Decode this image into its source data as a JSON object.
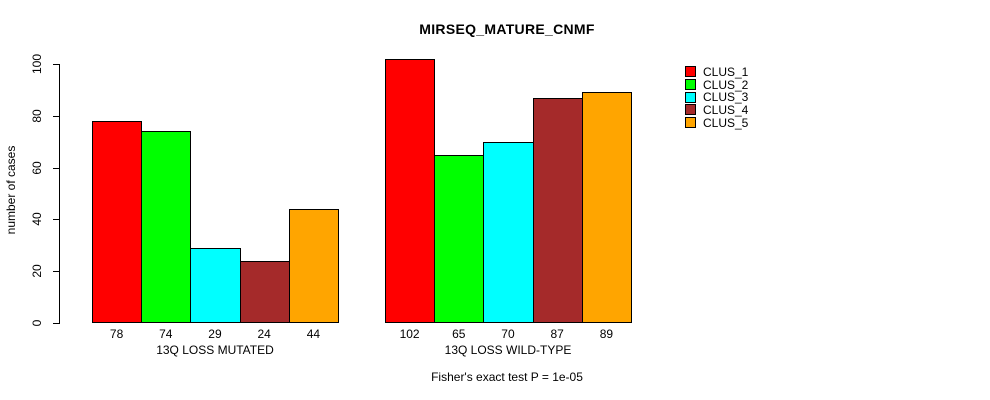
{
  "chart_data": {
    "type": "bar",
    "title": "MIRSEQ_MATURE_CNMF",
    "xlabel": "",
    "ylabel": "number of cases",
    "footnote": "Fisher's exact test P = 1e-05",
    "categories": [
      "13Q LOSS MUTATED",
      "13Q LOSS WILD-TYPE"
    ],
    "series": [
      {
        "name": "CLUS_1",
        "color": "#FF0000",
        "values": [
          78,
          102
        ]
      },
      {
        "name": "CLUS_2",
        "color": "#00FF00",
        "values": [
          74,
          65
        ]
      },
      {
        "name": "CLUS_3",
        "color": "#00FFFF",
        "values": [
          29,
          70
        ]
      },
      {
        "name": "CLUS_4",
        "color": "#A52A2A",
        "values": [
          24,
          87
        ]
      },
      {
        "name": "CLUS_5",
        "color": "#FFA500",
        "values": [
          44,
          89
        ]
      }
    ],
    "bar_value_labels_shown": true,
    "yticks": [
      0,
      20,
      40,
      60,
      80,
      100
    ],
    "ylim": [
      0,
      102
    ],
    "grid": false,
    "legend_position": "right",
    "bar_border_color": "#000000",
    "background_color": "#FFFFFF"
  }
}
